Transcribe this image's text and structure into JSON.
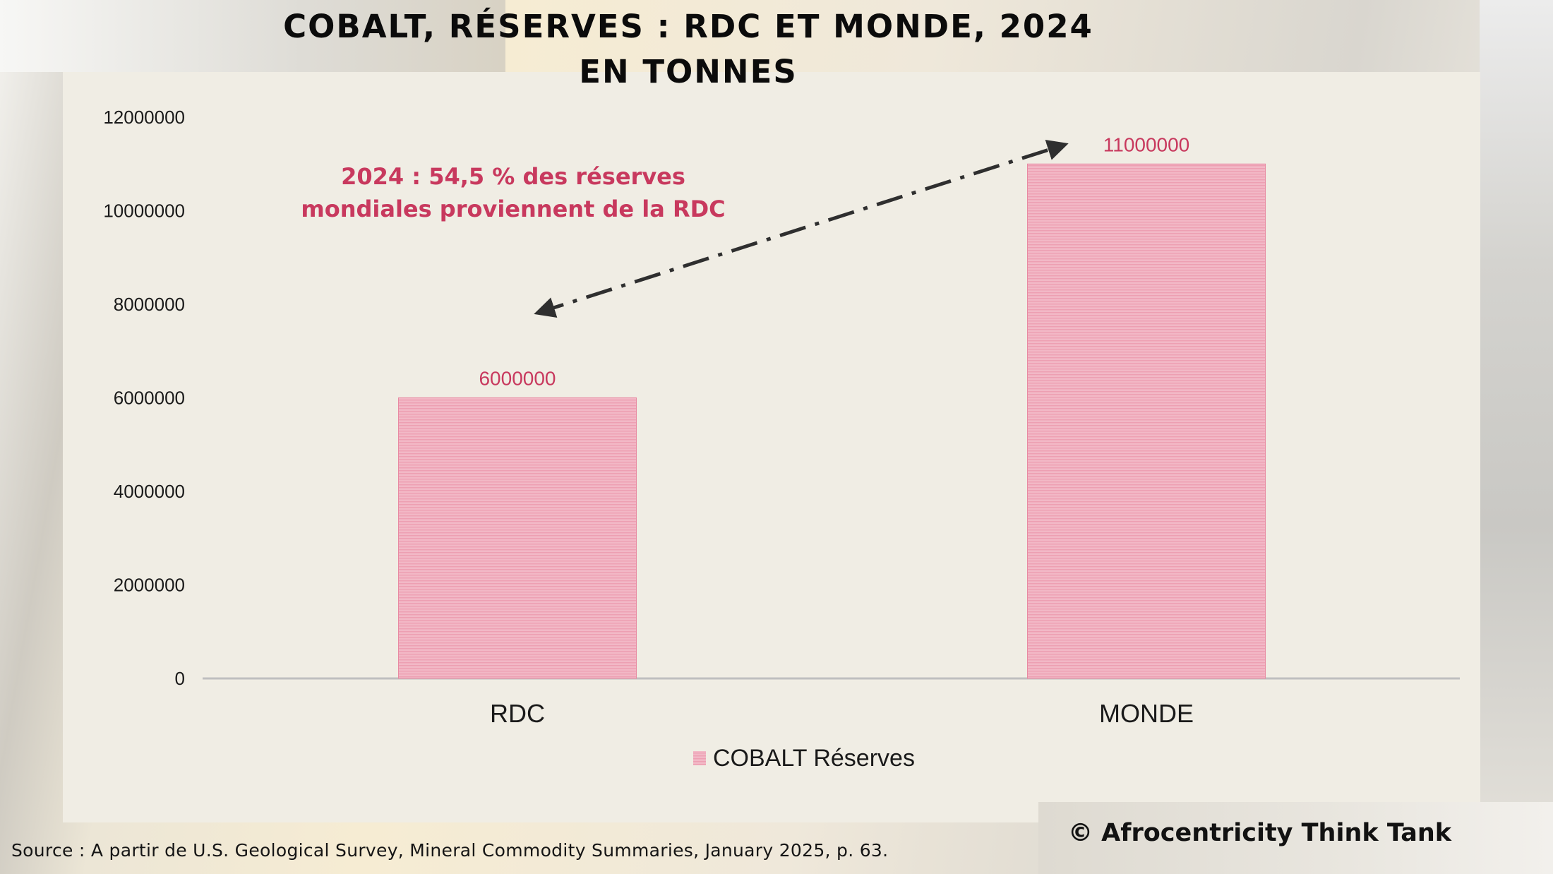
{
  "chart_data": {
    "type": "bar",
    "title_line1": "COBALT, RÉSERVES : RDC ET MONDE, 2024",
    "title_line2": "EN TONNES",
    "categories": [
      "RDC",
      "MONDE"
    ],
    "series": [
      {
        "name": "COBALT Réserves",
        "values": [
          6000000,
          11000000
        ]
      }
    ],
    "data_labels": [
      "6000000",
      "11000000"
    ],
    "ylim": [
      0,
      12000000
    ],
    "yticks": [
      "0",
      "2000000",
      "4000000",
      "6000000",
      "8000000",
      "10000000",
      "12000000"
    ],
    "xlabel": "",
    "ylabel": "",
    "grid": false,
    "legend_position": "bottom",
    "annotation": {
      "line1": "2024 : 54,5 % des réserves",
      "line2": "mondiales proviennent de la RDC"
    },
    "colors": {
      "bar_fill": "#f2b8c6",
      "bar_stripe": "#e88aa2",
      "label": "#c8395e",
      "annotation": "#c8395e",
      "axis": "#bfbfbf",
      "arrow": "#2f2f2f"
    }
  },
  "footer": {
    "source": "Source : A partir de U.S. Geological Survey, Mineral Commodity Summaries, January 2025, p. 63.",
    "copyright": "© Afrocentricity Think Tank"
  }
}
